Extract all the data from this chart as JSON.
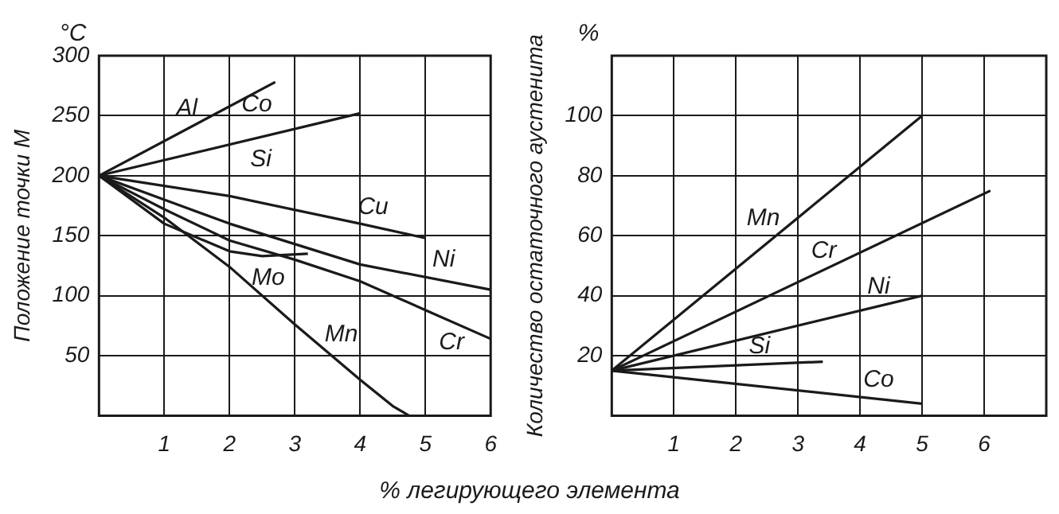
{
  "chart_data": [
    {
      "type": "line",
      "ylabel": "Положение точки M",
      "xlabel": "% легирующего элемента",
      "xlim": [
        0,
        6
      ],
      "ylim": [
        0,
        300
      ],
      "xticks": [
        1,
        2,
        3,
        4,
        5,
        6
      ],
      "yticks": [
        50,
        100,
        150,
        200,
        250,
        300
      ],
      "grid": true,
      "legend": false,
      "marker": "none",
      "line_style": "solid",
      "series": [
        {
          "name": "Al",
          "color": "#1a1a1a",
          "x": [
            0,
            2.7
          ],
          "values": [
            200,
            278
          ]
        },
        {
          "name": "Si",
          "color": "#1a1a1a",
          "x": [
            0,
            4
          ],
          "values": [
            200,
            252
          ]
        },
        {
          "name": "Cu",
          "color": "#1a1a1a",
          "x": [
            0,
            2,
            4,
            5
          ],
          "values": [
            200,
            183,
            160,
            148
          ]
        },
        {
          "name": "Ni",
          "color": "#1a1a1a",
          "x": [
            0,
            2,
            4,
            6
          ],
          "values": [
            200,
            160,
            126,
            105
          ]
        },
        {
          "name": "Cr",
          "color": "#1a1a1a",
          "x": [
            0,
            1,
            2,
            3,
            4,
            5,
            6
          ],
          "values": [
            200,
            172,
            146,
            130,
            112,
            88,
            64
          ]
        },
        {
          "name": "Mo",
          "color": "#1a1a1a",
          "x": [
            0,
            1,
            2,
            2.5,
            3.2
          ],
          "values": [
            200,
            160,
            137,
            133,
            135
          ]
        },
        {
          "name": "Mn",
          "color": "#1a1a1a",
          "x": [
            0,
            1,
            2,
            3,
            4,
            4.5,
            4.75
          ],
          "values": [
            200,
            165,
            124,
            76,
            30,
            8,
            0
          ]
        }
      ],
      "annotations": [
        "°C",
        {
          "text": "Co",
          "x": 2.7,
          "y": 278
        }
      ]
    },
    {
      "type": "line",
      "ylabel": "Количество остаточного аустенита",
      "xlim": [
        0,
        7
      ],
      "ylim": [
        0,
        120
      ],
      "xticks": [
        1,
        2,
        3,
        4,
        5,
        6
      ],
      "yticks": [
        20,
        40,
        60,
        80,
        100
      ],
      "grid": true,
      "legend": false,
      "marker": "none",
      "line_style": "solid",
      "series": [
        {
          "name": "Mn",
          "color": "#1a1a1a",
          "x": [
            0,
            5
          ],
          "values": [
            15,
            100
          ]
        },
        {
          "name": "Cr",
          "color": "#1a1a1a",
          "x": [
            0,
            6.1
          ],
          "values": [
            15,
            75
          ]
        },
        {
          "name": "Ni",
          "color": "#1a1a1a",
          "x": [
            0,
            5
          ],
          "values": [
            15,
            40
          ]
        },
        {
          "name": "Si",
          "color": "#1a1a1a",
          "x": [
            0,
            3.4
          ],
          "values": [
            15,
            18
          ]
        },
        {
          "name": "Co",
          "color": "#1a1a1a",
          "x": [
            0,
            5
          ],
          "values": [
            15,
            4
          ]
        }
      ],
      "annotations": [
        "%"
      ]
    }
  ]
}
